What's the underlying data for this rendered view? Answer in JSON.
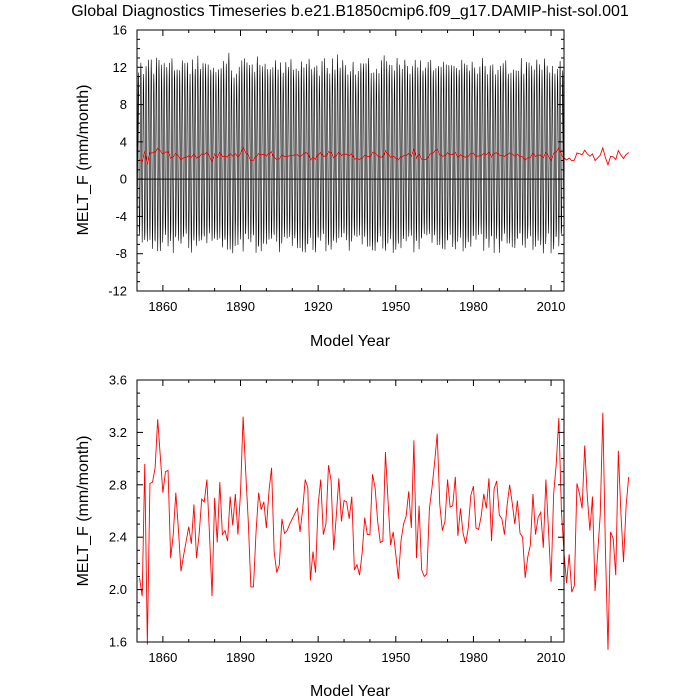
{
  "title": "Global Diagnostics Timeseries b.e21.B1850cmip6.f09_g17.DAMIP-hist-sol.001",
  "colors": {
    "monthly": "#000000",
    "annual": "#ff0000",
    "zero_line": "#000000"
  },
  "chart_data": [
    {
      "type": "line",
      "xlabel": "Model Year",
      "ylabel": "MELT_F (mm/month)",
      "xlim": [
        1850,
        2015
      ],
      "ylim": [
        -12,
        16
      ],
      "xticks": [
        "1860",
        "1890",
        "1920",
        "1950",
        "1980",
        "2010"
      ],
      "yticks": [
        "-12",
        "-8",
        "-4",
        "0",
        "4",
        "8",
        "12",
        "16"
      ],
      "grid": false,
      "reference_line_y": 0,
      "series": [
        {
          "style": "monthly",
          "color": "#000000",
          "description_of_values": "monthly values oscillating seasonally between about -8 and 14",
          "annual_max": [
            12.2,
            13.0,
            12.6,
            12.8,
            13.4,
            12.9,
            12.4,
            14.2,
            13.6,
            12.8,
            13.2,
            12.6,
            12.9,
            13.8,
            12.5,
            12.6,
            13.1,
            12.8,
            12.7,
            13.5,
            12.6,
            13.0,
            12.9,
            13.3,
            12.4,
            12.6,
            13.2,
            13.8,
            13.0,
            12.5,
            12.9,
            13.1,
            12.7,
            13.0,
            12.8,
            13.6,
            12.9,
            12.4,
            12.6,
            13.2,
            12.8,
            13.0,
            12.6,
            12.9,
            13.1,
            12.5,
            13.4,
            12.8,
            13.0,
            12.7,
            12.6,
            13.1,
            12.9,
            12.8,
            12.5,
            13.0,
            12.7,
            13.2,
            12.6,
            12.9,
            12.8,
            13.0,
            12.4,
            13.1,
            12.7,
            12.9,
            13.3,
            12.6,
            12.8,
            13.0,
            12.5,
            12.7,
            13.2,
            12.9,
            12.6,
            13.1,
            12.8,
            13.4,
            12.5,
            12.9,
            13.0,
            12.7,
            12.8,
            13.1,
            12.6,
            12.9,
            13.2,
            12.7,
            12.8,
            13.0,
            12.6,
            12.9,
            13.1,
            12.5,
            12.8,
            13.3,
            12.7,
            12.9,
            13.0,
            12.6,
            13.2,
            12.8,
            12.7,
            13.1,
            12.9,
            12.6,
            13.0,
            12.8,
            12.7,
            13.2,
            12.9,
            12.6,
            13.1,
            12.8,
            12.7,
            13.0,
            12.9,
            12.5,
            13.3,
            12.8,
            12.6,
            13.0,
            12.9,
            12.7,
            13.1,
            12.8,
            12.6,
            13.2,
            12.9,
            12.7,
            13.0,
            12.8,
            12.6,
            13.1,
            12.9,
            12.7,
            13.4,
            12.8,
            12.6,
            13.0,
            12.9,
            12.7,
            13.1,
            12.8,
            12.6,
            13.2,
            12.9,
            12.7,
            13.0,
            12.8,
            12.6,
            13.1,
            12.9,
            12.7,
            13.0,
            12.8,
            12.6,
            13.2,
            12.9,
            12.7,
            13.0,
            12.8,
            12.5,
            13.1,
            12.9,
            12.7,
            13.0,
            12.8,
            12.6
          ],
          "annual_min": -7.0
        },
        {
          "style": "annual",
          "color": "#ff0000",
          "description_of_values": "annual mean, same as lower panel"
        }
      ]
    },
    {
      "type": "line",
      "xlabel": "Model Year",
      "ylabel": "MELT_F (mm/month)",
      "xlim": [
        1850,
        2015
      ],
      "ylim": [
        1.6,
        3.6
      ],
      "xticks": [
        "1860",
        "1890",
        "1920",
        "1950",
        "1980",
        "2010"
      ],
      "yticks": [
        "1.6",
        "2.0",
        "2.4",
        "2.8",
        "3.2",
        "3.6"
      ],
      "grid": false,
      "series": [
        {
          "style": "annual",
          "color": "#ff0000",
          "x_start": 1851,
          "values": [
            2.09,
            1.95,
            2.96,
            1.58,
            2.81,
            2.82,
            2.93,
            3.3,
            3.02,
            2.74,
            2.9,
            2.91,
            2.24,
            2.42,
            2.74,
            2.46,
            2.14,
            2.26,
            2.37,
            2.48,
            2.35,
            2.65,
            2.24,
            2.42,
            2.69,
            2.67,
            2.84,
            2.43,
            1.95,
            2.7,
            2.36,
            2.82,
            2.42,
            2.45,
            2.37,
            2.71,
            2.49,
            2.73,
            2.42,
            2.74,
            3.32,
            2.9,
            2.52,
            2.02,
            2.02,
            2.44,
            2.74,
            2.61,
            2.67,
            2.47,
            2.75,
            2.93,
            2.29,
            2.13,
            2.19,
            2.54,
            2.43,
            2.45,
            2.5,
            2.54,
            2.58,
            2.62,
            2.44,
            2.61,
            2.84,
            2.78,
            2.07,
            2.29,
            2.13,
            2.65,
            2.84,
            2.42,
            2.5,
            2.95,
            2.83,
            2.3,
            2.56,
            2.85,
            2.52,
            2.68,
            2.67,
            2.54,
            2.71,
            2.15,
            2.19,
            2.11,
            2.28,
            2.55,
            2.42,
            2.42,
            2.88,
            2.78,
            2.52,
            2.36,
            2.37,
            3.05,
            2.68,
            2.34,
            2.44,
            2.27,
            2.08,
            2.37,
            2.5,
            2.56,
            2.75,
            2.47,
            3.14,
            2.24,
            2.64,
            2.15,
            2.1,
            2.12,
            2.62,
            2.78,
            2.97,
            3.19,
            2.65,
            2.45,
            2.52,
            2.84,
            2.63,
            2.64,
            2.86,
            2.41,
            2.62,
            2.43,
            2.35,
            2.47,
            2.72,
            2.79,
            2.47,
            2.46,
            2.56,
            2.73,
            2.62,
            2.85,
            2.37,
            2.77,
            2.83,
            2.57,
            2.54,
            2.42,
            2.64,
            2.8,
            2.66,
            2.5,
            2.68,
            2.43,
            2.4,
            2.09,
            2.25,
            2.34,
            2.73,
            2.42,
            2.55,
            2.59,
            2.32,
            2.84,
            2.46,
            2.06,
            2.73,
            2.96,
            3.31,
            2.6,
            2.28,
            2.05,
            2.27,
            1.98,
            2.03,
            2.81,
            2.73,
            2.62,
            3.1,
            2.71,
            2.45,
            2.71,
            1.99,
            2.27,
            2.57,
            3.35,
            2.31,
            1.54,
            2.44,
            2.39,
            2.11,
            3.06,
            2.58,
            2.21,
            2.64,
            2.86
          ]
        }
      ]
    }
  ]
}
